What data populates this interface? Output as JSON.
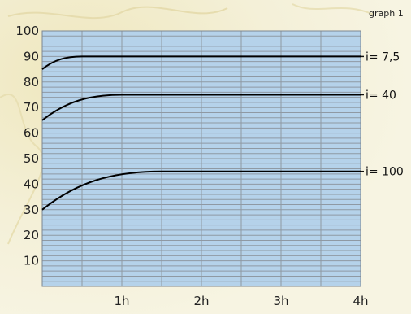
{
  "caption": "graph 1",
  "chart_data": {
    "type": "line",
    "xlabel": "",
    "ylabel": "",
    "xlim": [
      0,
      4
    ],
    "ylim": [
      0,
      100
    ],
    "x_ticks": [
      {
        "value": 1,
        "label": "1h"
      },
      {
        "value": 2,
        "label": "2h"
      },
      {
        "value": 3,
        "label": "3h"
      },
      {
        "value": 4,
        "label": "4h"
      }
    ],
    "y_ticks": [
      10,
      20,
      30,
      40,
      50,
      60,
      70,
      80,
      90,
      100
    ],
    "grid": true,
    "series": [
      {
        "name": "i= 7,5",
        "start": 85,
        "plateau": 90,
        "plateau_from": 0.5
      },
      {
        "name": "i= 40",
        "start": 65,
        "plateau": 75,
        "plateau_from": 1.0
      },
      {
        "name": "i= 100",
        "start": 30,
        "plateau": 45,
        "plateau_from": 1.5
      }
    ],
    "colors": {
      "plot_background": "#b5d2ea",
      "grid_line": "#8f99a3",
      "series_line": "#000000"
    }
  }
}
